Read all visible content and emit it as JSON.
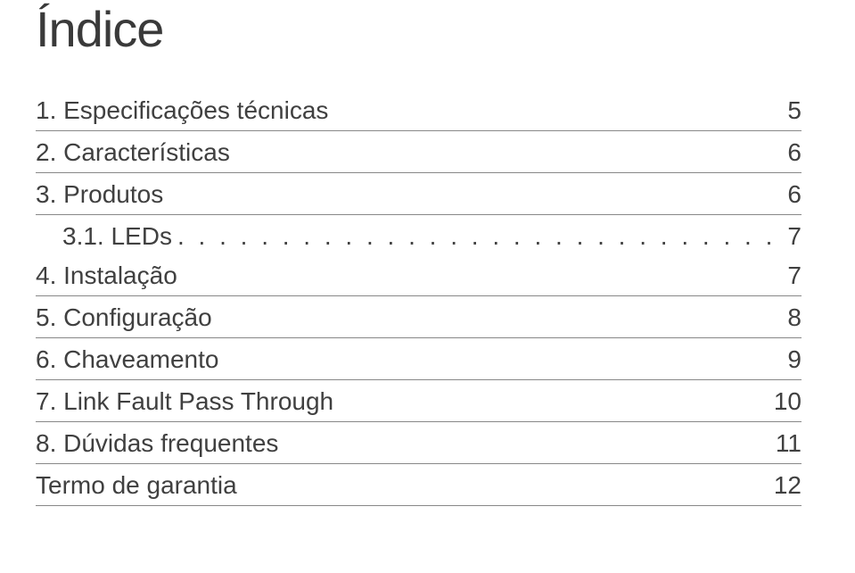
{
  "title": "Índice",
  "entries": [
    {
      "label": "1. Especificações técnicas",
      "page": "5",
      "hasDots": false
    },
    {
      "label": "2. Características",
      "page": "6",
      "hasDots": false
    },
    {
      "label": "3. Produtos",
      "page": "6",
      "hasDots": false
    },
    {
      "label": "3.1. LEDs",
      "page": "7",
      "hasDots": true,
      "sub": true
    },
    {
      "label": "4. Instalação",
      "page": "7",
      "hasDots": false
    },
    {
      "label": "5. Configuração",
      "page": "8",
      "hasDots": false
    },
    {
      "label": "6. Chaveamento",
      "page": "9",
      "hasDots": false
    },
    {
      "label": "7. Link Fault Pass Through",
      "page": "10",
      "hasDots": false
    },
    {
      "label": "8. Dúvidas frequentes",
      "page": "11",
      "hasDots": false
    },
    {
      "label": "Termo de garantia",
      "page": "12",
      "hasDots": false
    }
  ],
  "colors": {
    "text": "#404040",
    "border": "#888888",
    "background": "#ffffff"
  }
}
